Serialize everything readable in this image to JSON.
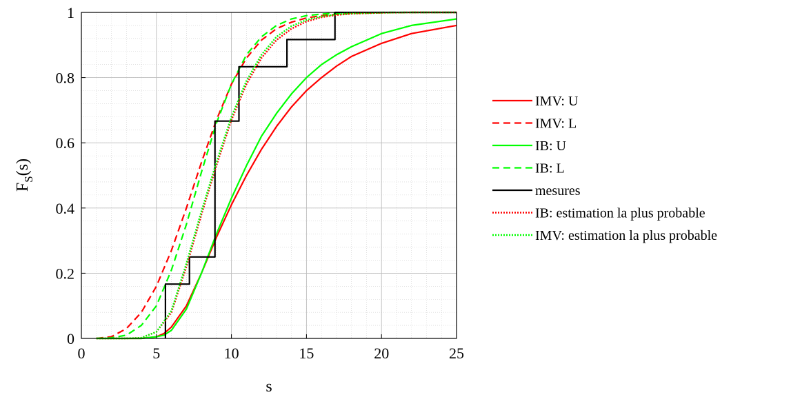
{
  "chart_data": {
    "type": "line",
    "xlabel": "s",
    "ylabel": "F",
    "ylabel_sub": "S",
    "ylabel_suffix": "(s)",
    "xlim": [
      0,
      25
    ],
    "ylim": [
      0,
      1
    ],
    "xticks": [
      0,
      5,
      10,
      15,
      20,
      25
    ],
    "yticks": [
      0,
      0.2,
      0.4,
      0.6,
      0.8,
      1
    ],
    "xtick_labels": [
      "0",
      "5",
      "10",
      "15",
      "20",
      "25"
    ],
    "ytick_labels": [
      "0",
      "0.2",
      "0.4",
      "0.6",
      "0.8",
      "1"
    ],
    "grid": true,
    "minor_grid": true,
    "legend_position": "outside-right",
    "series": [
      {
        "name": "IMV: U",
        "color": "#ff0000",
        "style": "solid",
        "x": [
          1,
          4,
          5,
          5.5,
          6,
          7,
          8,
          9,
          10,
          11,
          12,
          13,
          14,
          15,
          16,
          17,
          18,
          20,
          22,
          25
        ],
        "y": [
          0,
          0,
          0.005,
          0.015,
          0.035,
          0.1,
          0.2,
          0.31,
          0.41,
          0.5,
          0.58,
          0.65,
          0.71,
          0.76,
          0.8,
          0.835,
          0.865,
          0.905,
          0.935,
          0.96
        ]
      },
      {
        "name": "IMV: L",
        "color": "#ff0000",
        "style": "dashed",
        "x": [
          1,
          2,
          3,
          4,
          5,
          6,
          7,
          8,
          9,
          10,
          11,
          12,
          13,
          14,
          15,
          16,
          17,
          18,
          20,
          22,
          25
        ],
        "y": [
          0,
          0.005,
          0.03,
          0.08,
          0.16,
          0.27,
          0.4,
          0.54,
          0.67,
          0.78,
          0.86,
          0.915,
          0.95,
          0.97,
          0.983,
          0.99,
          0.994,
          0.997,
          0.999,
          1,
          1
        ]
      },
      {
        "name": "IB: U",
        "color": "#00ff00",
        "style": "solid",
        "x": [
          1,
          4,
          5,
          5.5,
          6,
          7,
          8,
          9,
          10,
          11,
          12,
          13,
          14,
          15,
          16,
          17,
          18,
          20,
          22,
          25
        ],
        "y": [
          0,
          0,
          0.005,
          0.01,
          0.025,
          0.09,
          0.2,
          0.32,
          0.43,
          0.53,
          0.62,
          0.69,
          0.75,
          0.8,
          0.84,
          0.87,
          0.895,
          0.935,
          0.96,
          0.98
        ]
      },
      {
        "name": "IB: L",
        "color": "#00ff00",
        "style": "dashed",
        "x": [
          1,
          2,
          3,
          4,
          5,
          6,
          7,
          8,
          9,
          10,
          11,
          12,
          13,
          14,
          15,
          16,
          17,
          18,
          20,
          22,
          25
        ],
        "y": [
          0,
          0.002,
          0.01,
          0.04,
          0.1,
          0.21,
          0.35,
          0.51,
          0.66,
          0.78,
          0.87,
          0.925,
          0.96,
          0.98,
          0.99,
          0.995,
          0.998,
          0.999,
          1,
          1,
          1
        ]
      },
      {
        "name": "mesures",
        "color": "#000000",
        "style": "step",
        "x": [
          5.6,
          5.6,
          7.2,
          7.2,
          8.9,
          8.9,
          10.5,
          10.5,
          13.7,
          13.7,
          16.9,
          16.9,
          25
        ],
        "y": [
          0,
          0.1667,
          0.1667,
          0.25,
          0.25,
          0.6667,
          0.6667,
          0.8333,
          0.8333,
          0.9167,
          0.9167,
          1,
          1
        ]
      },
      {
        "name": "IB: estimation la plus probable",
        "color": "#ff0000",
        "style": "dotted",
        "x": [
          1,
          3,
          4,
          5,
          6,
          7,
          8,
          9,
          10,
          11,
          12,
          13,
          14,
          15,
          16,
          17,
          18,
          20,
          22,
          25
        ],
        "y": [
          0,
          0,
          0.002,
          0.02,
          0.08,
          0.22,
          0.38,
          0.53,
          0.67,
          0.78,
          0.86,
          0.915,
          0.95,
          0.972,
          0.985,
          0.992,
          0.996,
          0.999,
          1,
          1
        ]
      },
      {
        "name": "IMV: estimation la plus probable",
        "color": "#00ff00",
        "style": "dotted",
        "x": [
          1,
          3,
          4,
          5,
          6,
          7,
          8,
          9,
          10,
          11,
          12,
          13,
          14,
          15,
          16,
          17,
          18,
          20,
          22,
          25
        ],
        "y": [
          0,
          0,
          0.002,
          0.02,
          0.085,
          0.23,
          0.39,
          0.54,
          0.68,
          0.79,
          0.87,
          0.925,
          0.958,
          0.977,
          0.988,
          0.994,
          0.997,
          0.999,
          1,
          1
        ]
      }
    ]
  }
}
